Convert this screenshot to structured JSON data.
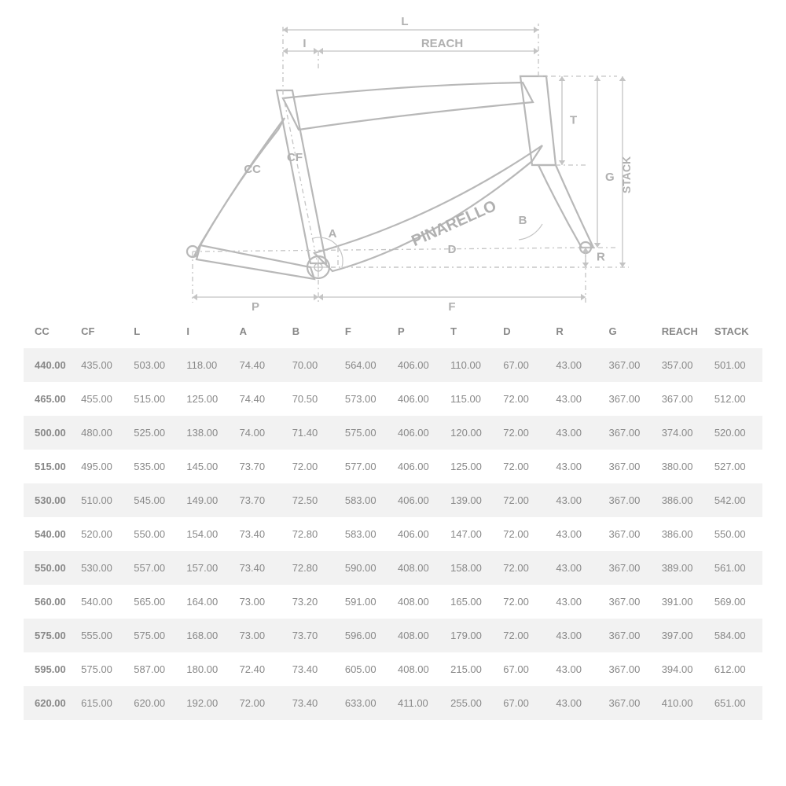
{
  "diagram": {
    "labels": {
      "L": "L",
      "I": "I",
      "REACH": "REACH",
      "T": "T",
      "G": "G",
      "STACK": "STACK",
      "CC": "CC",
      "CF": "CF",
      "A": "A",
      "B": "B",
      "D": "D",
      "R": "R",
      "P": "P",
      "F": "F"
    },
    "brand_text": "PINARELLO",
    "colors": {
      "stroke": "#c4c4c4",
      "frame_stroke": "#b8b8b8",
      "text": "#b0b0b0",
      "bg": "#ffffff"
    },
    "font_size_label": 15,
    "line_width_dim": 1.3,
    "line_width_frame": 2.2
  },
  "table": {
    "columns": [
      "CC",
      "CF",
      "L",
      "I",
      "A",
      "B",
      "F",
      "P",
      "T",
      "D",
      "R",
      "G",
      "REACH",
      "STACK"
    ],
    "rows": [
      [
        "440.00",
        "435.00",
        "503.00",
        "118.00",
        "74.40",
        "70.00",
        "564.00",
        "406.00",
        "110.00",
        "67.00",
        "43.00",
        "367.00",
        "357.00",
        "501.00"
      ],
      [
        "465.00",
        "455.00",
        "515.00",
        "125.00",
        "74.40",
        "70.50",
        "573.00",
        "406.00",
        "115.00",
        "72.00",
        "43.00",
        "367.00",
        "367.00",
        "512.00"
      ],
      [
        "500.00",
        "480.00",
        "525.00",
        "138.00",
        "74.00",
        "71.40",
        "575.00",
        "406.00",
        "120.00",
        "72.00",
        "43.00",
        "367.00",
        "374.00",
        "520.00"
      ],
      [
        "515.00",
        "495.00",
        "535.00",
        "145.00",
        "73.70",
        "72.00",
        "577.00",
        "406.00",
        "125.00",
        "72.00",
        "43.00",
        "367.00",
        "380.00",
        "527.00"
      ],
      [
        "530.00",
        "510.00",
        "545.00",
        "149.00",
        "73.70",
        "72.50",
        "583.00",
        "406.00",
        "139.00",
        "72.00",
        "43.00",
        "367.00",
        "386.00",
        "542.00"
      ],
      [
        "540.00",
        "520.00",
        "550.00",
        "154.00",
        "73.40",
        "72.80",
        "583.00",
        "406.00",
        "147.00",
        "72.00",
        "43.00",
        "367.00",
        "386.00",
        "550.00"
      ],
      [
        "550.00",
        "530.00",
        "557.00",
        "157.00",
        "73.40",
        "72.80",
        "590.00",
        "408.00",
        "158.00",
        "72.00",
        "43.00",
        "367.00",
        "389.00",
        "561.00"
      ],
      [
        "560.00",
        "540.00",
        "565.00",
        "164.00",
        "73.00",
        "73.20",
        "591.00",
        "408.00",
        "165.00",
        "72.00",
        "43.00",
        "367.00",
        "391.00",
        "569.00"
      ],
      [
        "575.00",
        "555.00",
        "575.00",
        "168.00",
        "73.00",
        "73.70",
        "596.00",
        "408.00",
        "179.00",
        "72.00",
        "43.00",
        "367.00",
        "397.00",
        "584.00"
      ],
      [
        "595.00",
        "575.00",
        "587.00",
        "180.00",
        "72.40",
        "73.40",
        "605.00",
        "408.00",
        "215.00",
        "67.00",
        "43.00",
        "367.00",
        "394.00",
        "612.00"
      ],
      [
        "620.00",
        "615.00",
        "620.00",
        "192.00",
        "72.00",
        "73.40",
        "633.00",
        "411.00",
        "255.00",
        "67.00",
        "43.00",
        "367.00",
        "410.00",
        "651.00"
      ]
    ],
    "header_bg": "#ffffff",
    "row_alt_bg": "#f2f2f2",
    "text_color": "#888888",
    "font_size": 13
  }
}
